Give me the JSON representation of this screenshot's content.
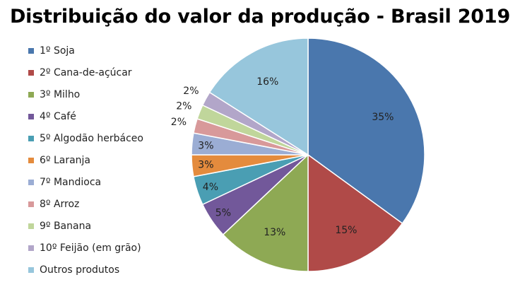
{
  "chart_data": {
    "type": "pie",
    "title": "Distribuição do valor da produção - Brasil 2019",
    "legend_position": "left",
    "slices": [
      {
        "name": "1º Soja",
        "value": 35,
        "label": "35%",
        "color": "#4a77ad"
      },
      {
        "name": "2º Cana-de-açúcar",
        "value": 15,
        "label": "15%",
        "color": "#b04a48"
      },
      {
        "name": "3º Milho",
        "value": 13,
        "label": "13%",
        "color": "#8ea954"
      },
      {
        "name": "4º Café",
        "value": 5,
        "label": "5%",
        "color": "#72589a"
      },
      {
        "name": "5º Algodão herbáceo",
        "value": 4,
        "label": "4%",
        "color": "#4a9eb3"
      },
      {
        "name": "6º Laranja",
        "value": 3,
        "label": "3%",
        "color": "#e48b3d"
      },
      {
        "name": "7º Mandioca",
        "value": 3,
        "label": "3%",
        "color": "#9badd4"
      },
      {
        "name": "8º Arroz",
        "value": 2,
        "label": "2%",
        "color": "#d8999a"
      },
      {
        "name": "9º Banana",
        "value": 2,
        "label": "2%",
        "color": "#c0d69b"
      },
      {
        "name": "10º Feijão (em grão)",
        "value": 2,
        "label": "2%",
        "color": "#b2a6c9"
      },
      {
        "name": "Outros produtos",
        "value": 16,
        "label": "16%",
        "color": "#97c6dc"
      }
    ]
  }
}
